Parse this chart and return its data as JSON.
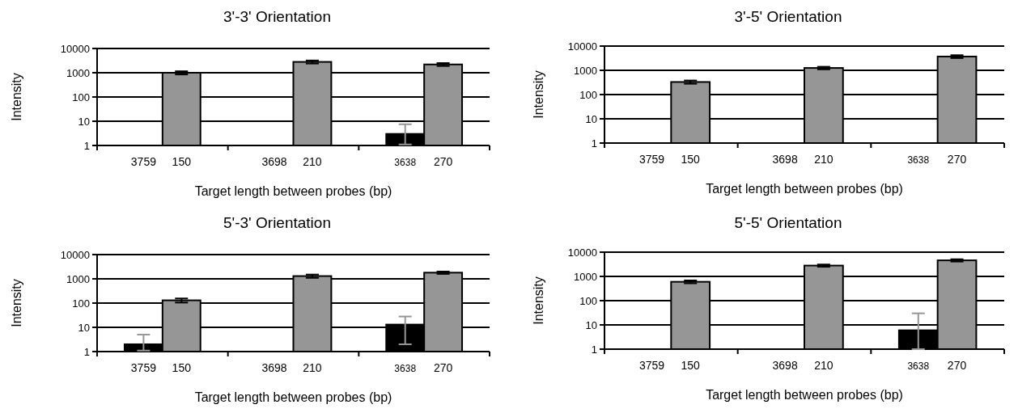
{
  "chart_data": [
    {
      "type": "bar",
      "title": "3'-3' Orientation",
      "xlabel": "Target length between probes (bp)",
      "ylabel": "Intensity",
      "categories": [
        "3759",
        "150",
        "3698",
        "210",
        "3638",
        "270"
      ],
      "values": [
        null,
        1000,
        null,
        2800,
        3,
        2200
      ],
      "colors": [
        null,
        "#969696",
        null,
        "#969696",
        "#000000",
        "#969696"
      ],
      "errors": [
        null,
        150,
        null,
        400,
        [
          1.1,
          7.5
        ],
        300
      ],
      "log": "y",
      "ylim": [
        1,
        10000
      ],
      "yticks": [
        1,
        10,
        100,
        1000,
        10000
      ],
      "grid": "y"
    },
    {
      "type": "bar",
      "title": "3'-5' Orientation",
      "xlabel": "Target length between probes (bp)",
      "ylabel": "Intensity",
      "categories": [
        "3759",
        "150",
        "3698",
        "210",
        "3638",
        "270"
      ],
      "values": [
        null,
        330,
        null,
        1250,
        null,
        3700
      ],
      "colors": [
        null,
        "#969696",
        null,
        "#969696",
        null,
        "#969696"
      ],
      "errors": [
        null,
        50,
        null,
        150,
        null,
        500
      ],
      "log": "y",
      "ylim": [
        1,
        10000
      ],
      "yticks": [
        1,
        10,
        100,
        1000,
        10000
      ],
      "grid": "y"
    },
    {
      "type": "bar",
      "title": "5'-3' Orientation",
      "xlabel": "Target length between probes (bp)",
      "ylabel": "Intensity",
      "categories": [
        "3759",
        "150",
        "3698",
        "210",
        "3638",
        "270"
      ],
      "values": [
        2,
        130,
        null,
        1300,
        13,
        1800
      ],
      "colors": [
        "#000000",
        "#969696",
        null,
        "#969696",
        "#000000",
        "#969696"
      ],
      "errors": [
        [
          1.1,
          5
        ],
        25,
        null,
        200,
        [
          2,
          28
        ],
        200
      ],
      "log": "y",
      "ylim": [
        1,
        10000
      ],
      "yticks": [
        1,
        10,
        100,
        1000,
        10000
      ],
      "grid": "y"
    },
    {
      "type": "bar",
      "title": "5'-5' Orientation",
      "xlabel": "Target length between probes (bp)",
      "ylabel": "Intensity",
      "categories": [
        "3759",
        "150",
        "3698",
        "210",
        "3638",
        "270"
      ],
      "values": [
        null,
        600,
        null,
        2800,
        6,
        4600
      ],
      "colors": [
        null,
        "#969696",
        null,
        "#969696",
        "#000000",
        "#969696"
      ],
      "errors": [
        null,
        80,
        null,
        300,
        [
          1,
          30
        ],
        500
      ],
      "log": "y",
      "ylim": [
        1,
        10000
      ],
      "yticks": [
        1,
        10,
        100,
        1000,
        10000
      ],
      "grid": "y"
    }
  ]
}
